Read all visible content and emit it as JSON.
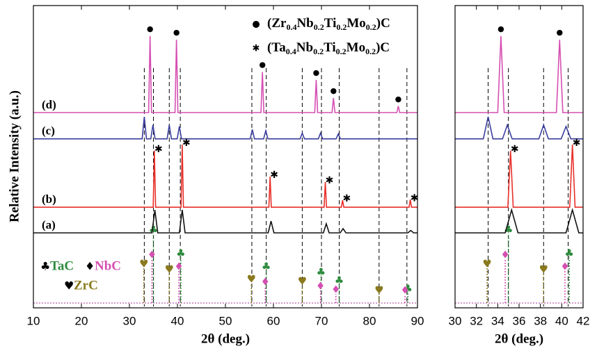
{
  "chart_data": {
    "type": "line",
    "ylabel": "Relative Intensity (a.u.)",
    "ylim": [
      0,
      100
    ],
    "panels": [
      {
        "xlim": [
          10,
          90
        ],
        "xticks": [
          10,
          20,
          30,
          40,
          50,
          60,
          70,
          80,
          90
        ],
        "xlabel": "2θ (deg.)"
      },
      {
        "xlim": [
          30,
          42
        ],
        "xticks": [
          30,
          32,
          34,
          36,
          38,
          40,
          42
        ],
        "xlabel": "2θ (deg.)"
      }
    ],
    "reference_lines": [
      33.1,
      35.0,
      38.3,
      40.6,
      55.5,
      58.5,
      66.0,
      70.0,
      73.7,
      82.0,
      87.8
    ],
    "series": [
      {
        "label": "(d)",
        "color": "#d54fb2",
        "x": [
          10,
          34.0,
          34.3,
          34.6,
          39.5,
          39.8,
          40.1,
          57.4,
          57.7,
          58.0,
          68.6,
          68.9,
          69.2,
          72.2,
          72.5,
          72.8,
          85.7,
          86.0,
          86.3,
          90
        ],
        "values": [
          64.6,
          64.6,
          89.9,
          64.6,
          64.6,
          88.7,
          64.6,
          64.6,
          78,
          64.6,
          64.6,
          75.4,
          64.6,
          64.6,
          69.4,
          64.6,
          64.6,
          66.7,
          64.6,
          64.6
        ],
        "markers": {
          "symbol": "●",
          "name": "(Zr0.4Nb0.2Ti0.2Mo0.2)C",
          "x": [
            34.3,
            39.8,
            57.7,
            68.9,
            72.5,
            86.0
          ]
        }
      },
      {
        "label": "(c)",
        "color": "#3b3f9e",
        "x": [
          10,
          32.65,
          33.1,
          33.55,
          34.45,
          34.9,
          35.35,
          37.85,
          38.3,
          38.75,
          39.95,
          40.4,
          40.85,
          55.15,
          55.6,
          56.05,
          57.95,
          58.4,
          58.85,
          65.55,
          66,
          66.45,
          69.35,
          69.8,
          70.25,
          73.05,
          73.5,
          73.95,
          90
        ],
        "values": [
          55.9,
          55.9,
          63.2,
          55.9,
          55.9,
          60.5,
          55.9,
          55.9,
          60.5,
          55.9,
          55.9,
          60,
          55.9,
          55.9,
          59,
          55.9,
          55.9,
          58.6,
          55.9,
          55.9,
          57.8,
          55.9,
          55.9,
          57.8,
          55.9,
          55.9,
          57.5,
          55.9,
          55.9
        ]
      },
      {
        "label": "(b)",
        "color": "#e8302a",
        "x": [
          10,
          34.95,
          35.2,
          35.45,
          40.75,
          41,
          41.25,
          59.05,
          59.3,
          59.55,
          70.55,
          70.8,
          71.05,
          74.15,
          74.4,
          74.65,
          88.25,
          88.5,
          88.75,
          90
        ],
        "values": [
          33.3,
          33.3,
          52,
          33.3,
          33.3,
          54,
          33.3,
          33.3,
          43.4,
          33.3,
          33.3,
          41.6,
          33.3,
          33.3,
          35.6,
          33.3,
          33.3,
          35.8,
          33.3,
          33.3
        ],
        "markers": {
          "symbol": "✱",
          "name": "(Ta0.4Nb0.2Ti0.2Mo0.2)C",
          "x": [
            35.2,
            41.0,
            59.3,
            70.8,
            74.4,
            88.5
          ]
        }
      },
      {
        "label": "(a)",
        "color": "#111111",
        "x": [
          10,
          34.7,
          35.3,
          35.9,
          40.4,
          41,
          41.6,
          58.9,
          59.5,
          60.1,
          70.4,
          71,
          71.6,
          73.9,
          74.5,
          75.1,
          88,
          88.6,
          89.2,
          90
        ],
        "values": [
          24.8,
          24.8,
          32.4,
          24.8,
          24.8,
          32.4,
          24.8,
          24.8,
          28.7,
          24.8,
          24.8,
          27.8,
          24.8,
          24.8,
          26.2,
          24.8,
          24.8,
          25.6,
          24.8,
          24.8
        ]
      }
    ],
    "reference_baseline": 1.6,
    "references": [
      {
        "name": "TaC",
        "symbol": "♣",
        "color": "#2e8b3e",
        "x": [
          35.0,
          40.7,
          58.5,
          69.9,
          73.7,
          88.0
        ],
        "values": [
          24.4,
          16.6,
          12.2,
          10.3,
          7.6,
          4.8
        ]
      },
      {
        "name": "NbC",
        "symbol": "♦",
        "color": "#d54fb2",
        "x": [
          34.7,
          40.3,
          58.3,
          69.8,
          73.0,
          87.4
        ],
        "values": [
          16.1,
          12.2,
          7.1,
          5.7,
          4.6,
          4.4
        ]
      },
      {
        "name": "ZrC",
        "symbol": "♥",
        "color": "#8a7a1e",
        "x": [
          33.0,
          38.3,
          55.4,
          66.0,
          82.0
        ],
        "values": [
          13.1,
          11.3,
          8.0,
          7.4,
          4.4
        ]
      }
    ]
  }
}
